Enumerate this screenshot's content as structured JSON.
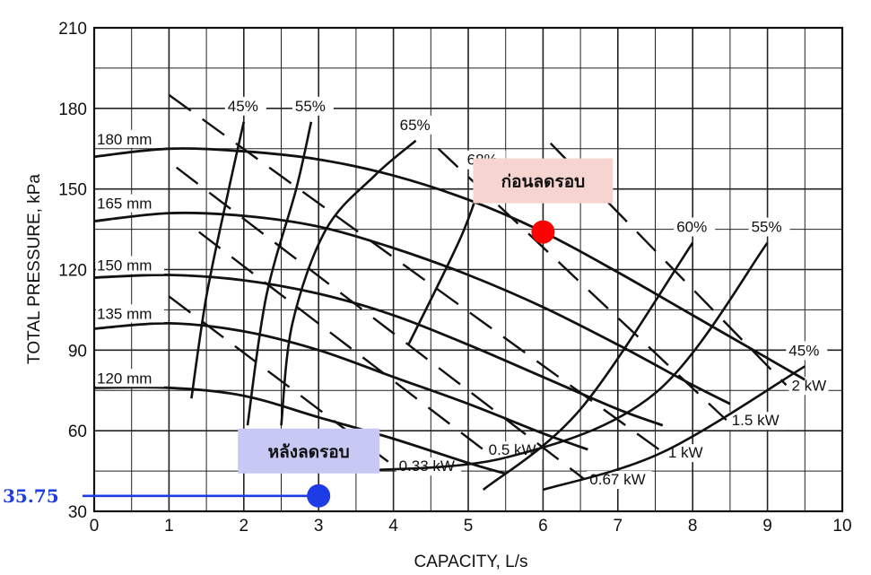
{
  "chart_data": {
    "type": "line",
    "title": "",
    "xlabel": "CAPACITY, L/s",
    "ylabel": "TOTAL PRESSURE, kPa",
    "xlim": [
      0,
      10
    ],
    "ylim": [
      30,
      210
    ],
    "x_ticks": [
      "0",
      "1",
      "2",
      "3",
      "4",
      "5",
      "6",
      "7",
      "8",
      "9",
      "10"
    ],
    "y_ticks": [
      "30",
      "60",
      "90",
      "120",
      "150",
      "180",
      "210"
    ],
    "grid": true,
    "legend": "none",
    "colors": {
      "curve": "#111111",
      "before_point": "#ff0000",
      "after_point": "#1e3ce6",
      "before_fill": "#f6d4cf",
      "after_fill": "#c8c8f4",
      "readout": "#1e3ce6"
    },
    "impeller_curves": [
      {
        "label": "180 mm",
        "points": [
          [
            0,
            162
          ],
          [
            1,
            165
          ],
          [
            2,
            164
          ],
          [
            3,
            161
          ],
          [
            4,
            155
          ],
          [
            5,
            146
          ],
          [
            6,
            134
          ],
          [
            7,
            119
          ],
          [
            8,
            103
          ],
          [
            9,
            87
          ],
          [
            9.5,
            79
          ]
        ]
      },
      {
        "label": "165 mm",
        "points": [
          [
            0,
            138
          ],
          [
            1,
            141
          ],
          [
            2,
            140
          ],
          [
            3,
            136
          ],
          [
            4,
            128
          ],
          [
            5,
            118
          ],
          [
            6,
            106
          ],
          [
            7,
            92
          ],
          [
            8,
            77
          ],
          [
            8.5,
            70
          ]
        ]
      },
      {
        "label": "150 mm",
        "points": [
          [
            0,
            117
          ],
          [
            1,
            118
          ],
          [
            2,
            116
          ],
          [
            3,
            111
          ],
          [
            4,
            103
          ],
          [
            5,
            92
          ],
          [
            6,
            80
          ],
          [
            7,
            68
          ],
          [
            7.6,
            62
          ]
        ]
      },
      {
        "label": "135 mm",
        "points": [
          [
            0,
            98
          ],
          [
            1,
            100
          ],
          [
            2,
            97
          ],
          [
            3,
            90
          ],
          [
            4,
            80
          ],
          [
            5,
            70
          ],
          [
            6,
            59
          ],
          [
            6.6,
            53
          ]
        ]
      },
      {
        "label": "120 mm",
        "points": [
          [
            0,
            76
          ],
          [
            1,
            76
          ],
          [
            2,
            73
          ],
          [
            3,
            65
          ],
          [
            4,
            57
          ],
          [
            5,
            48
          ],
          [
            5.5,
            44
          ]
        ]
      }
    ],
    "efficiency_curves": [
      {
        "label": "45%",
        "points": [
          [
            1.3,
            72
          ],
          [
            1.5,
            110
          ],
          [
            1.8,
            150
          ],
          [
            2.0,
            175
          ]
        ]
      },
      {
        "label": "55%",
        "points": [
          [
            2.05,
            62
          ],
          [
            2.3,
            110
          ],
          [
            2.7,
            150
          ],
          [
            2.9,
            175
          ]
        ]
      },
      {
        "label": "65%",
        "points": [
          [
            2.5,
            62
          ],
          [
            2.65,
            100
          ],
          [
            3.1,
            135
          ],
          [
            3.75,
            155
          ],
          [
            4.3,
            168
          ]
        ]
      },
      {
        "label": "68%",
        "points": [
          [
            4.2,
            92
          ],
          [
            4.9,
            132
          ],
          [
            5.2,
            155
          ]
        ]
      },
      {
        "label": "60%",
        "points": [
          [
            5.2,
            38
          ],
          [
            6.5,
            68
          ],
          [
            8.0,
            130
          ]
        ]
      },
      {
        "label": "55%",
        "points": [
          [
            3.4,
            45
          ],
          [
            5.5,
            50
          ],
          [
            7.5,
            74
          ],
          [
            9.0,
            130
          ]
        ]
      },
      {
        "label": "45%",
        "points": [
          [
            6.0,
            38
          ],
          [
            7.6,
            52
          ],
          [
            9.5,
            84
          ]
        ]
      }
    ],
    "power_lines": [
      {
        "label": "0.33 kW",
        "from": [
          1.0,
          110
        ],
        "to": [
          4.0,
          47
        ]
      },
      {
        "label": "0.5 kW",
        "from": [
          1.4,
          134
        ],
        "to": [
          5.2,
          53
        ]
      },
      {
        "label": "0.67 kW",
        "from": [
          1.1,
          158
        ],
        "to": [
          6.55,
          42
        ]
      },
      {
        "label": "1 kW",
        "from": [
          1.0,
          185
        ],
        "to": [
          7.6,
          52
        ]
      },
      {
        "label": "1.5 kW",
        "from": [
          4.6,
          165
        ],
        "to": [
          8.45,
          64
        ]
      },
      {
        "label": "2 kW",
        "from": [
          6.1,
          167
        ],
        "to": [
          9.25,
          77
        ]
      }
    ],
    "points": [
      {
        "label": "ก่อนลดรอบ",
        "x": 6.0,
        "y": 134
      },
      {
        "label": "หลังลดรอบ",
        "x": 3.0,
        "y": 35.75
      }
    ],
    "annotation_value": "35.75"
  }
}
